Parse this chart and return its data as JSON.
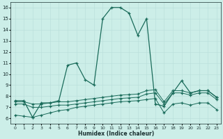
{
  "xlabel": "Humidex (Indice chaleur)",
  "bg_color": "#cceee8",
  "line_color": "#1a6b5a",
  "xlim": [
    -0.5,
    23.5
  ],
  "ylim": [
    5.5,
    16.5
  ],
  "xticks": [
    0,
    1,
    2,
    3,
    4,
    5,
    6,
    7,
    8,
    9,
    10,
    11,
    12,
    13,
    14,
    15,
    16,
    17,
    18,
    19,
    20,
    21,
    22,
    23
  ],
  "yticks": [
    6,
    7,
    8,
    9,
    10,
    11,
    12,
    13,
    14,
    15,
    16
  ],
  "series": [
    {
      "x": [
        0,
        1,
        2,
        3,
        4,
        5,
        6,
        7,
        8,
        9,
        10,
        11,
        12,
        13,
        14,
        15,
        16,
        17,
        18,
        19,
        20,
        21,
        22,
        23
      ],
      "y": [
        7.6,
        7.6,
        6.1,
        7.4,
        7.4,
        7.6,
        10.8,
        11.0,
        9.5,
        9.0,
        15.0,
        16.0,
        16.0,
        15.5,
        13.5,
        15.0,
        7.3,
        7.1,
        8.3,
        9.4,
        8.3,
        8.5,
        8.5,
        7.9
      ]
    },
    {
      "x": [
        0,
        1,
        2,
        3,
        4,
        5,
        6,
        7,
        8,
        9,
        10,
        11,
        12,
        13,
        14,
        15,
        16,
        17,
        18,
        19,
        20,
        21,
        22,
        23
      ],
      "y": [
        7.5,
        7.5,
        7.3,
        7.3,
        7.4,
        7.5,
        7.5,
        7.6,
        7.7,
        7.8,
        7.9,
        8.0,
        8.1,
        8.15,
        8.2,
        8.5,
        8.6,
        7.5,
        8.5,
        8.5,
        8.3,
        8.5,
        8.5,
        7.9
      ]
    },
    {
      "x": [
        0,
        1,
        2,
        3,
        4,
        5,
        6,
        7,
        8,
        9,
        10,
        11,
        12,
        13,
        14,
        15,
        16,
        17,
        18,
        19,
        20,
        21,
        22,
        23
      ],
      "y": [
        7.3,
        7.3,
        7.0,
        7.0,
        7.1,
        7.2,
        7.2,
        7.3,
        7.4,
        7.5,
        7.6,
        7.7,
        7.8,
        7.85,
        7.9,
        8.2,
        8.3,
        7.3,
        8.3,
        8.3,
        8.1,
        8.3,
        8.3,
        7.7
      ]
    },
    {
      "x": [
        0,
        1,
        2,
        3,
        4,
        5,
        6,
        7,
        8,
        9,
        10,
        11,
        12,
        13,
        14,
        15,
        16,
        17,
        18,
        19,
        20,
        21,
        22,
        23
      ],
      "y": [
        6.3,
        6.2,
        6.1,
        6.3,
        6.5,
        6.7,
        6.8,
        7.0,
        7.1,
        7.2,
        7.3,
        7.4,
        7.5,
        7.55,
        7.6,
        7.7,
        7.8,
        6.5,
        7.3,
        7.4,
        7.2,
        7.4,
        7.4,
        6.8
      ]
    }
  ]
}
